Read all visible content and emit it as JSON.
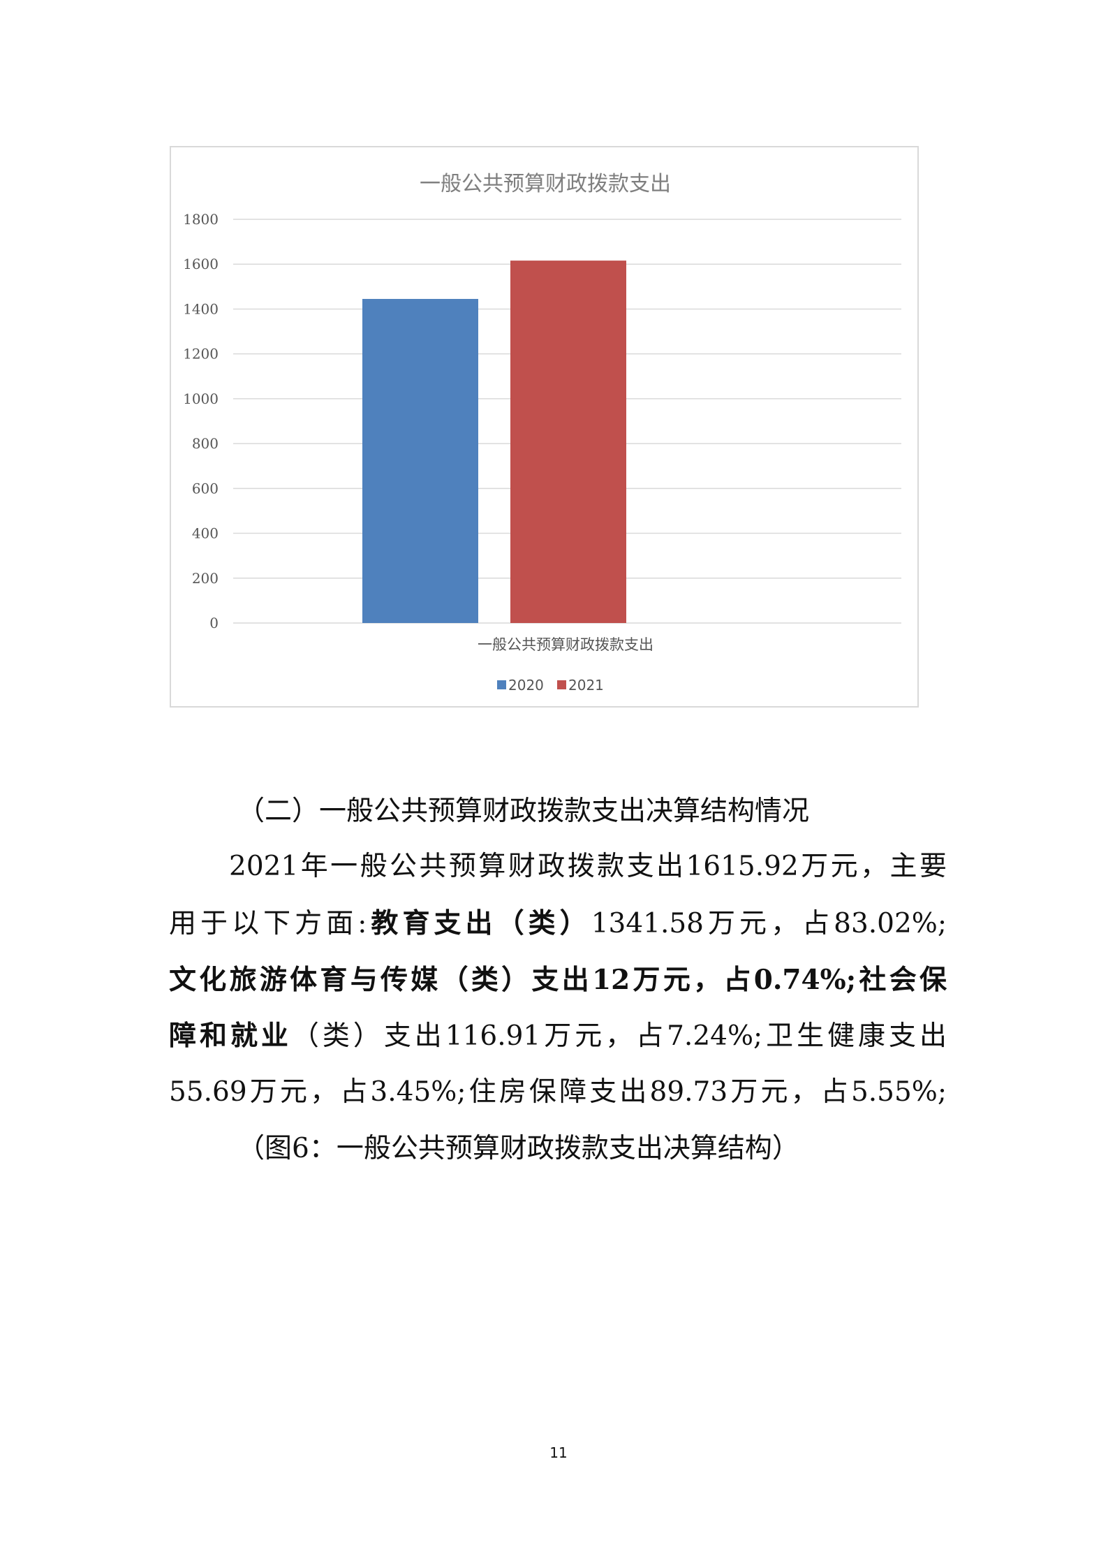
{
  "chart_data": {
    "type": "bar",
    "title": "一般公共预算财政拨款支出",
    "categories": [
      "一般公共预算财政拨款支出"
    ],
    "series": [
      {
        "name": "2020",
        "values": [
          1445
        ],
        "color": "#4f81bd"
      },
      {
        "name": "2021",
        "values": [
          1615.92
        ],
        "color": "#c0504d"
      }
    ],
    "ylim": [
      0,
      1800
    ],
    "yticks": [
      "0",
      "200",
      "400",
      "600",
      "800",
      "1000",
      "1200",
      "1400",
      "1600",
      "1800"
    ],
    "grid": true,
    "legend": "bottom"
  },
  "section": {
    "heading": "（二）一般公共预算财政拨款支出决算结构情况",
    "lines": [
      [
        {
          "t": "2021年一般公共预算财政拨款支出1615.92万元，主要",
          "b": false
        }
      ],
      [
        {
          "t": "用于以下方面:",
          "b": false
        },
        {
          "t": "教育支出（类）",
          "b": true
        },
        {
          "t": "1341.58万元，占83.02%;",
          "b": false
        }
      ],
      [
        {
          "t": "文化旅游体育与传媒（类）支出12万元，占0.74%;社会保",
          "b": true
        }
      ],
      [
        {
          "t": "障和就业",
          "b": true
        },
        {
          "t": "（类）支出116.91万元，占7.24%;卫生健康支出",
          "b": false
        }
      ],
      [
        {
          "t": "55.69万元，占3.45%;住房保障支出89.73万元，占5.55%;",
          "b": false
        }
      ]
    ],
    "caption": "（图6：一般公共预算财政拨款支出决算结构）"
  },
  "page_number": "11"
}
